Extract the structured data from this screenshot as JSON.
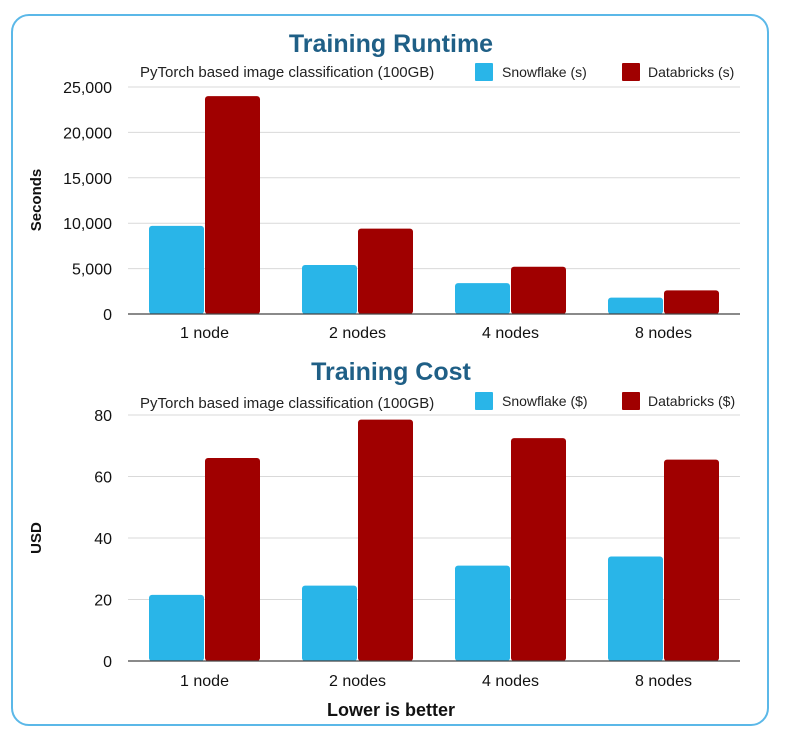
{
  "footer": "Lower is better",
  "colors": {
    "snowflake": "#29b5e8",
    "databricks": "#a00000",
    "grid": "#d9d9d9",
    "axis": "#444444",
    "title": "#1f5f86"
  },
  "chart_data": [
    {
      "type": "bar",
      "title": "Training Runtime",
      "subtitle": "PyTorch based image classification (100GB)",
      "ylabel": "Seconds",
      "xlabel": "",
      "ylim": [
        0,
        25000
      ],
      "yticks": [
        0,
        5000,
        10000,
        15000,
        20000,
        25000
      ],
      "ytick_labels": [
        "0",
        "5,000",
        "10,000",
        "15,000",
        "20,000",
        "25,000"
      ],
      "grid": true,
      "legend_position": "top-right",
      "categories": [
        "1 node",
        "2 nodes",
        "4 nodes",
        "8 nodes"
      ],
      "series": [
        {
          "name": "Snowflake (s)",
          "color": "#29b5e8",
          "values": [
            9700,
            5400,
            3400,
            1800
          ]
        },
        {
          "name": "Databricks (s)",
          "color": "#a00000",
          "values": [
            24000,
            9400,
            5200,
            2600
          ]
        }
      ]
    },
    {
      "type": "bar",
      "title": "Training Cost",
      "subtitle": "PyTorch based image classification (100GB)",
      "ylabel": "USD",
      "xlabel": "",
      "ylim": [
        0,
        80
      ],
      "yticks": [
        0,
        20,
        40,
        60,
        80
      ],
      "ytick_labels": [
        "0",
        "20",
        "40",
        "60",
        "80"
      ],
      "grid": true,
      "legend_position": "top-right",
      "categories": [
        "1 node",
        "2 nodes",
        "4 nodes",
        "8 nodes"
      ],
      "series": [
        {
          "name": "Snowflake ($)",
          "color": "#29b5e8",
          "values": [
            21.5,
            24.5,
            31,
            34
          ]
        },
        {
          "name": "Databricks ($)",
          "color": "#a00000",
          "values": [
            66,
            78.5,
            72.5,
            65.5
          ]
        }
      ]
    }
  ]
}
